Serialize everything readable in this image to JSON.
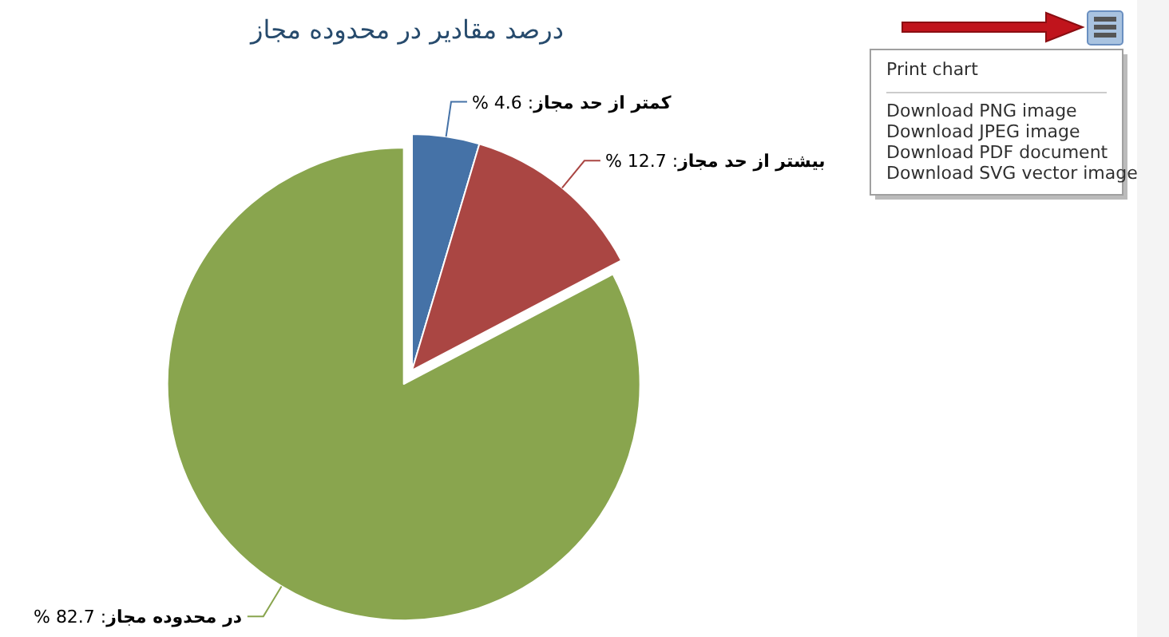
{
  "chart_data": {
    "type": "pie",
    "title": "درصد مقادیر در محدوده مجاز",
    "categories": [
      "کمتر از حد مجاز",
      "بیشتر از حد مجاز",
      "در محدوده مجاز"
    ],
    "values": [
      4.6,
      12.7,
      82.7
    ],
    "value_labels": [
      ": 4.6 %",
      ": 12.7 %",
      ": 82.7 %"
    ],
    "colors": [
      "#4572a7",
      "#aa4643",
      "#89a54e"
    ],
    "annotations": [
      "Print chart",
      "Download PNG image",
      "Download JPEG image",
      "Download PDF document",
      "Download SVG vector image"
    ]
  }
}
